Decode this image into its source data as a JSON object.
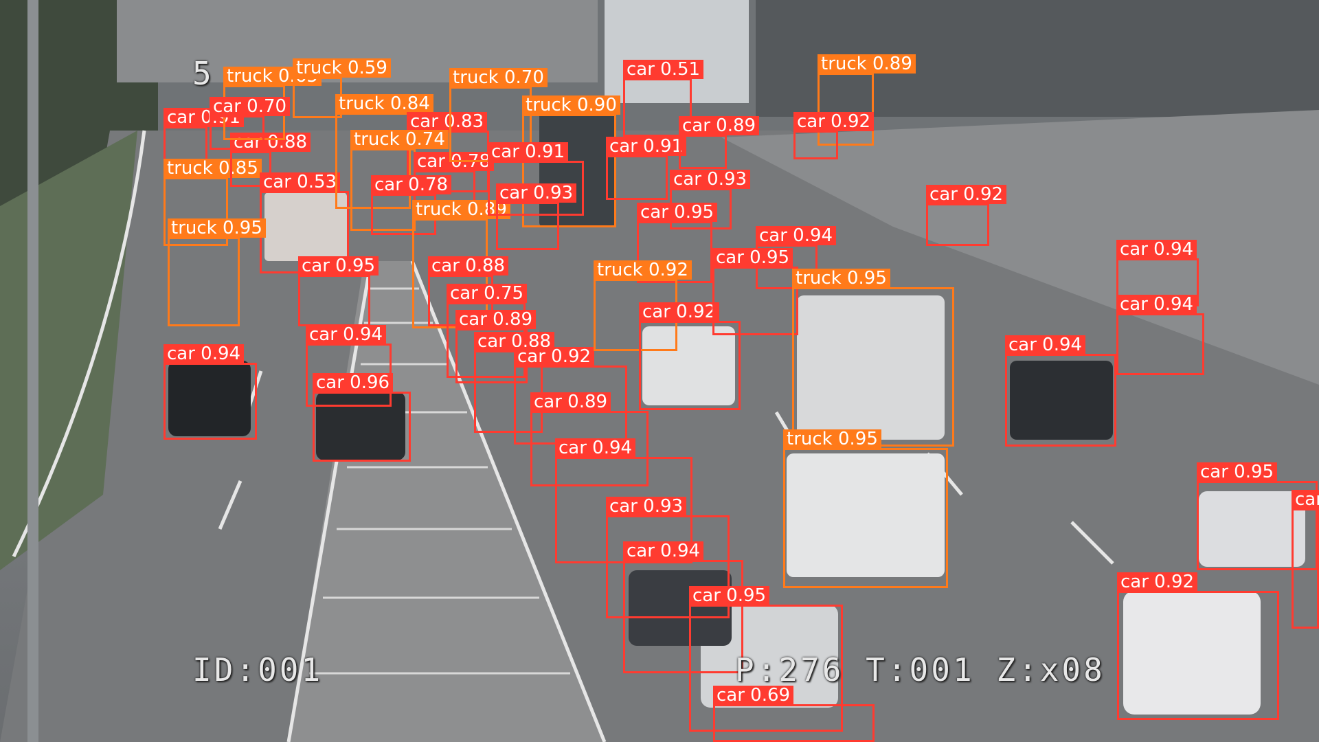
{
  "osd": {
    "camera_id": "ID:001",
    "status": "P:276 T:001 Z:x08",
    "top_left_partial": "5"
  },
  "colors": {
    "car": "#ff3b30",
    "truck": "#ff7a1a"
  },
  "detections": [
    {
      "label": "car 0.91"
    },
    {
      "label": "truck 0.85"
    },
    {
      "label": "car 0.88"
    },
    {
      "label": "car 0.53"
    },
    {
      "label": "truck 0.95"
    },
    {
      "label": "car 0.95"
    },
    {
      "label": "car 0.94"
    },
    {
      "label": "car 0.94"
    },
    {
      "label": "car 0.96"
    },
    {
      "label": "truck 0.65"
    },
    {
      "label": "truck 0.59"
    },
    {
      "label": "car 0.70"
    },
    {
      "label": "truck 0.84"
    },
    {
      "label": "car 0.83"
    },
    {
      "label": "truck 0.74"
    },
    {
      "label": "car 0.78"
    },
    {
      "label": "car 0.78"
    },
    {
      "label": "truck 0.89"
    },
    {
      "label": "car 0.88"
    },
    {
      "label": "car 0.75"
    },
    {
      "label": "car 0.89"
    },
    {
      "label": "car 0.88"
    },
    {
      "label": "car 0.92"
    },
    {
      "label": "car 0.89"
    },
    {
      "label": "car 0.94"
    },
    {
      "label": "car 0.93"
    },
    {
      "label": "car 0.94"
    },
    {
      "label": "car 0.95"
    },
    {
      "label": "car 0.69"
    },
    {
      "label": "truck 0.70"
    },
    {
      "label": "truck 0.90"
    },
    {
      "label": "car 0.91"
    },
    {
      "label": "car 0.93"
    },
    {
      "label": "car 0.51"
    },
    {
      "label": "car 0.91"
    },
    {
      "label": "car 0.89"
    },
    {
      "label": "car 0.93"
    },
    {
      "label": "car 0.95"
    },
    {
      "label": "truck 0.92"
    },
    {
      "label": "car 0.92"
    },
    {
      "label": "car 0.94"
    },
    {
      "label": "car 0.95"
    },
    {
      "label": "truck 0.95"
    },
    {
      "label": "truck 0.95"
    },
    {
      "label": "truck 0.89"
    },
    {
      "label": "car 0.92"
    },
    {
      "label": "car 0.92"
    },
    {
      "label": "car 0.94"
    },
    {
      "label": "car 0.94"
    },
    {
      "label": "car 0.94"
    },
    {
      "label": "car 0.95"
    },
    {
      "label": "car 0.92"
    },
    {
      "label": "car"
    }
  ]
}
